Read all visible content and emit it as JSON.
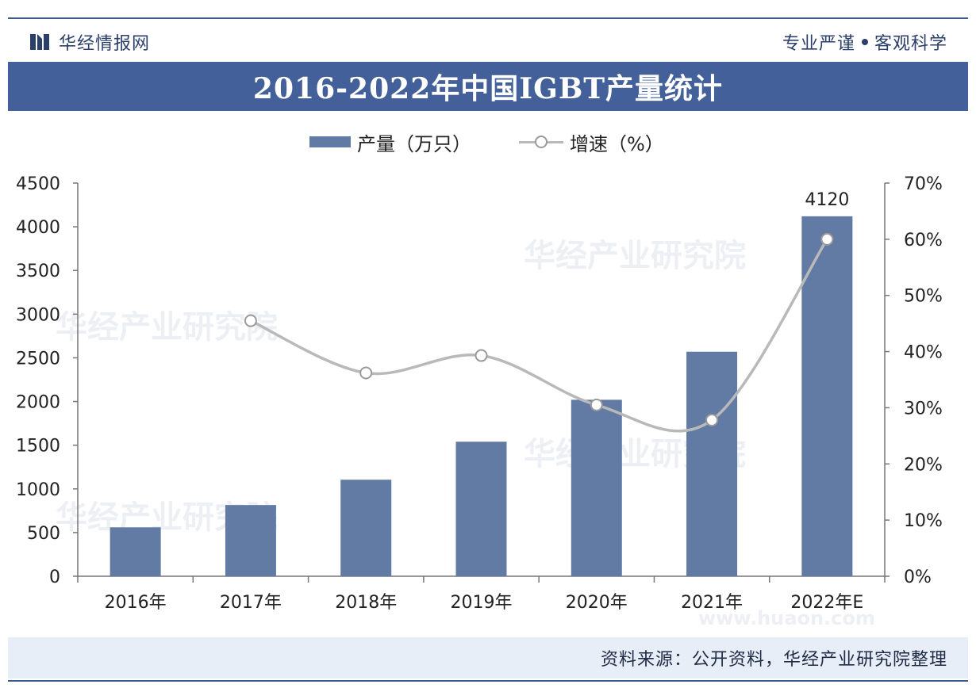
{
  "header": {
    "brand": "华经情报网",
    "slogan_left": "专业严谨",
    "slogan_right": "客观科学"
  },
  "title": "2016-2022年中国IGBT产量统计",
  "legend": {
    "bar": "产量（万只）",
    "line": "增速（%）"
  },
  "chart_data": {
    "type": "bar+line",
    "title": "2016-2022年中国IGBT产量统计",
    "categories": [
      "2016年",
      "2017年",
      "2018年",
      "2019年",
      "2020年",
      "2021年",
      "2022年E"
    ],
    "series": [
      {
        "name": "产量（万只）",
        "type": "bar",
        "axis": "left",
        "values": [
          560,
          815,
          1105,
          1540,
          2020,
          2570,
          4120
        ]
      },
      {
        "name": "增速（%）",
        "type": "line",
        "axis": "right",
        "smooth": true,
        "values": [
          null,
          45.5,
          36.2,
          39.3,
          30.5,
          27.8,
          60.0
        ]
      }
    ],
    "left_axis": {
      "min": 0,
      "max": 4500,
      "step": 500,
      "ticks": [
        "0",
        "500",
        "1000",
        "1500",
        "2000",
        "2500",
        "3000",
        "3500",
        "4000",
        "4500"
      ]
    },
    "right_axis": {
      "min": 0,
      "max": 70,
      "step": 10,
      "ticks": [
        "0%",
        "10%",
        "20%",
        "30%",
        "40%",
        "50%",
        "60%",
        "70%"
      ]
    },
    "data_labels": [
      {
        "category": "2022年E",
        "text": "4120"
      }
    ],
    "colors": {
      "bar": "#627ba4",
      "line": "#b9b9b9",
      "marker_stroke": "#9a9a9a",
      "axis": "#777777"
    }
  },
  "watermark": {
    "text_cn": "华经产业研究院",
    "text_url": "www.huaon.com"
  },
  "footer": {
    "source": "资料来源：公开资料，华经产业研究院整理"
  }
}
